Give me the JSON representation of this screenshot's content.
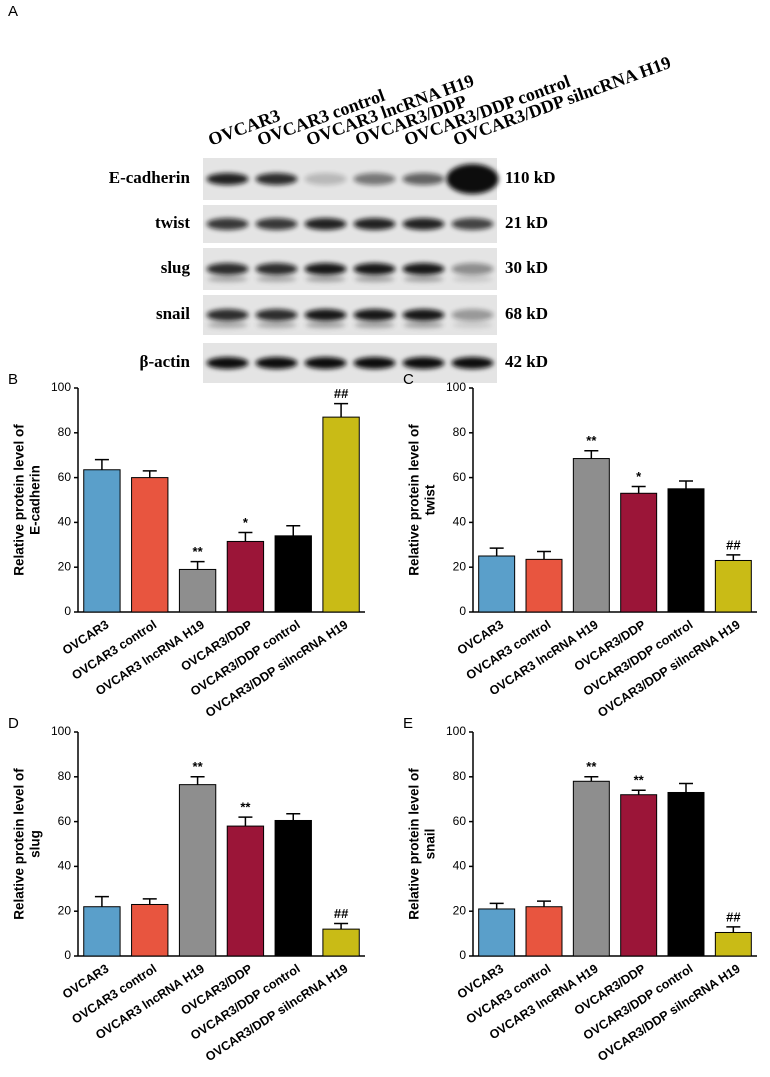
{
  "blot": {
    "panel": "A",
    "lanes": [
      "OVCAR3",
      "OVCAR3 control",
      "OVCAR3 lncRNA H19",
      "OVCAR3/DDP",
      "OVCAR3/DDP control",
      "OVCAR3/DDP silncRNA H19"
    ],
    "bands": [
      {
        "protein": "E-cadherin",
        "size": "110 kD"
      },
      {
        "protein": "twist",
        "size": "21 kD"
      },
      {
        "protein": "slug",
        "size": "30 kD"
      },
      {
        "protein": "snail",
        "size": "68 kD"
      },
      {
        "protein": "β-actin",
        "size": "42 kD"
      }
    ]
  },
  "chart_data": [
    {
      "type": "bar",
      "panel": "B",
      "y_label": [
        "Relative protein level of",
        "E-cadherin"
      ],
      "categories": [
        "OVCAR3",
        "OVCAR3 control",
        "OVCAR3 lncRNA H19",
        "OVCAR3/DDP",
        "OVCAR3/DDP control",
        "OVCAR3/DDP silncRNA H19"
      ],
      "values": [
        63.5,
        60,
        19,
        31.5,
        34,
        87
      ],
      "errors": [
        4.5,
        3,
        3.5,
        4,
        4.5,
        6
      ],
      "annotations": [
        null,
        null,
        "**",
        "*",
        null,
        "##"
      ],
      "colors": [
        "#5a9fca",
        "#e8553f",
        "#8e8e8e",
        "#9b1538",
        "#000000",
        "#c9bb16"
      ],
      "ylim": [
        0,
        100
      ],
      "yticks": [
        0,
        20,
        40,
        60,
        80,
        100
      ]
    },
    {
      "type": "bar",
      "panel": "C",
      "y_label": [
        "Relative protein level of",
        "twist"
      ],
      "categories": [
        "OVCAR3",
        "OVCAR3 control",
        "OVCAR3 lncRNA H19",
        "OVCAR3/DDP",
        "OVCAR3/DDP control",
        "OVCAR3/DDP silncRNA H19"
      ],
      "values": [
        25,
        23.5,
        68.5,
        53,
        55,
        23
      ],
      "errors": [
        3.5,
        3.5,
        3.5,
        3,
        3.5,
        2.5
      ],
      "annotations": [
        null,
        null,
        "**",
        "*",
        null,
        "##"
      ],
      "colors": [
        "#5a9fca",
        "#e8553f",
        "#8e8e8e",
        "#9b1538",
        "#000000",
        "#c9bb16"
      ],
      "ylim": [
        0,
        100
      ],
      "yticks": [
        0,
        20,
        40,
        60,
        80,
        100
      ]
    },
    {
      "type": "bar",
      "panel": "D",
      "y_label": [
        "Relative protein level of",
        "slug"
      ],
      "categories": [
        "OVCAR3",
        "OVCAR3 control",
        "OVCAR3 lncRNA H19",
        "OVCAR3/DDP",
        "OVCAR3/DDP control",
        "OVCAR3/DDP silncRNA H19"
      ],
      "values": [
        22,
        23,
        76.5,
        58,
        60.5,
        12
      ],
      "errors": [
        4.5,
        2.5,
        3.5,
        4,
        3,
        2.5
      ],
      "annotations": [
        null,
        null,
        "**",
        "**",
        null,
        "##"
      ],
      "colors": [
        "#5a9fca",
        "#e8553f",
        "#8e8e8e",
        "#9b1538",
        "#000000",
        "#c9bb16"
      ],
      "ylim": [
        0,
        100
      ],
      "yticks": [
        0,
        20,
        40,
        60,
        80,
        100
      ]
    },
    {
      "type": "bar",
      "panel": "E",
      "y_label": [
        "Relative protein level of",
        "snail"
      ],
      "categories": [
        "OVCAR3",
        "OVCAR3 control",
        "OVCAR3 lncRNA H19",
        "OVCAR3/DDP",
        "OVCAR3/DDP control",
        "OVCAR3/DDP silncRNA H19"
      ],
      "values": [
        21,
        22,
        78,
        72,
        73,
        10.5
      ],
      "errors": [
        2.5,
        2.5,
        2,
        2,
        4,
        2.5
      ],
      "annotations": [
        null,
        null,
        "**",
        "**",
        null,
        "##"
      ],
      "colors": [
        "#5a9fca",
        "#e8553f",
        "#8e8e8e",
        "#9b1538",
        "#000000",
        "#c9bb16"
      ],
      "ylim": [
        0,
        100
      ],
      "yticks": [
        0,
        20,
        40,
        60,
        80,
        100
      ]
    }
  ]
}
